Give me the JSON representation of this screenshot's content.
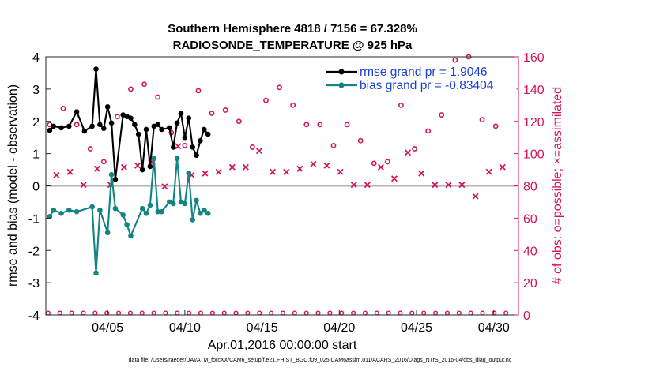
{
  "chart_data": {
    "type": "line",
    "title": "Southern Hemisphere 4818 / 7156 = 67.328%",
    "subtitle": "RADIOSONDE_TEMPERATURE @ 925 hPa",
    "xlabel": "Apr.01,2016 00:00:00 start",
    "ylabel": "rmse and bias (model - observation)",
    "y2label": "# of obs: o=possible; ×=assimilated",
    "footer": "data file: /Users/raeder/DAI/ATM_forcXX/CAM6_setup/f.e21.FHIST_BGC.f09_025.CAM6assim.011/ACARS_2016/Diags_NTrS_2016-04/obs_diag_output.nc",
    "xlim": [
      1.0,
      31.6
    ],
    "ylim": [
      -4,
      4
    ],
    "y2lim": [
      0,
      160
    ],
    "xticks": [
      5,
      10,
      15,
      20,
      25,
      30
    ],
    "xticklabels": [
      "04/05",
      "04/10",
      "04/15",
      "04/20",
      "04/25",
      "04/30"
    ],
    "yticks": [
      -4,
      -3,
      -2,
      -1,
      0,
      1,
      2,
      3,
      4
    ],
    "y2ticks": [
      0,
      20,
      40,
      60,
      80,
      100,
      120,
      140,
      160
    ],
    "zero_line": 0,
    "legend_position": "top-right",
    "colors": {
      "rmse": "#000000",
      "bias": "#138484",
      "obs": "#d4145a",
      "left_axis": "#000000",
      "right_axis": "#d4145a",
      "legend_text": "#1a3fd6",
      "zero": "#b4b4b4"
    },
    "series": [
      {
        "name": "rmse",
        "label": "rmse grand pr = 1.9046",
        "segments": [
          [
            [
              1.25,
              1.72
            ],
            [
              1.5,
              1.85
            ],
            [
              2.0,
              1.8
            ],
            [
              2.5,
              1.85
            ],
            [
              3.0,
              2.3
            ],
            [
              3.5,
              1.7
            ],
            [
              4.0,
              1.85
            ],
            [
              4.25,
              3.62
            ],
            [
              4.5,
              1.9
            ],
            [
              4.75,
              1.78
            ],
            [
              5.0,
              2.45
            ],
            [
              5.25,
              1.95
            ],
            [
              5.5,
              0.2
            ],
            [
              6.0,
              2.2
            ],
            [
              6.25,
              2.15
            ],
            [
              6.5,
              2.1
            ],
            [
              6.75,
              1.9
            ],
            [
              7.0,
              1.6
            ],
            [
              7.25,
              0.5
            ],
            [
              7.5,
              1.75
            ],
            [
              7.75,
              0.6
            ],
            [
              8.0,
              1.85
            ],
            [
              8.25,
              1.9
            ],
            [
              8.5,
              1.75
            ],
            [
              9.0,
              1.8
            ],
            [
              9.25,
              1.2
            ],
            [
              9.5,
              1.95
            ],
            [
              9.75,
              2.25
            ],
            [
              10.0,
              1.5
            ],
            [
              10.25,
              2.1
            ],
            [
              10.5,
              1.2
            ],
            [
              10.75,
              0.95
            ],
            [
              11.0,
              1.4
            ],
            [
              11.25,
              1.75
            ],
            [
              11.5,
              1.6
            ]
          ]
        ]
      },
      {
        "name": "bias",
        "label": "bias grand pr = -0.83404",
        "segments": [
          [
            [
              1.25,
              -0.95
            ],
            [
              1.5,
              -0.75
            ],
            [
              2.0,
              -0.85
            ],
            [
              2.5,
              -0.75
            ],
            [
              3.0,
              -0.8
            ],
            [
              4.0,
              -0.65
            ],
            [
              4.25,
              -2.7
            ],
            [
              4.5,
              -0.75
            ],
            [
              5.0,
              -1.45
            ],
            [
              5.25,
              0.35
            ],
            [
              5.5,
              -0.7
            ],
            [
              6.0,
              -0.9
            ],
            [
              6.25,
              -1.2
            ],
            [
              6.5,
              -1.55
            ],
            [
              7.25,
              -0.7
            ],
            [
              7.5,
              -0.85
            ],
            [
              7.75,
              -0.6
            ],
            [
              8.0,
              0.85
            ],
            [
              8.25,
              -0.8
            ],
            [
              8.5,
              -0.8
            ],
            [
              9.0,
              -0.5
            ],
            [
              9.25,
              -0.55
            ],
            [
              9.5,
              0.85
            ],
            [
              9.75,
              -0.5
            ],
            [
              10.0,
              -0.55
            ],
            [
              10.25,
              0.4
            ],
            [
              10.5,
              -1.05
            ],
            [
              10.75,
              -0.45
            ],
            [
              11.0,
              -0.85
            ],
            [
              11.25,
              -0.75
            ],
            [
              11.5,
              -0.85
            ]
          ]
        ]
      }
    ],
    "obs": {
      "name": "# of obs",
      "possible_marker": "o",
      "assimilated_marker": "×",
      "possible_counts": [
        118,
        128,
        118,
        103,
        95,
        123,
        140,
        143,
        135,
        113,
        105,
        139,
        125,
        127,
        120,
        104,
        133,
        141,
        130,
        118,
        118,
        105,
        118,
        108,
        94,
        95,
        130,
        103,
        114,
        124,
        158,
        160,
        121,
        117
      ],
      "assimilated_counts": [
        86,
        88,
        80,
        90,
        80,
        91,
        92,
        94,
        79,
        104,
        86,
        87,
        88,
        91,
        91,
        101,
        88,
        88,
        90,
        93,
        92,
        88,
        80,
        80,
        91,
        84,
        100,
        87,
        80,
        80,
        80,
        73,
        88,
        91
      ]
    }
  }
}
